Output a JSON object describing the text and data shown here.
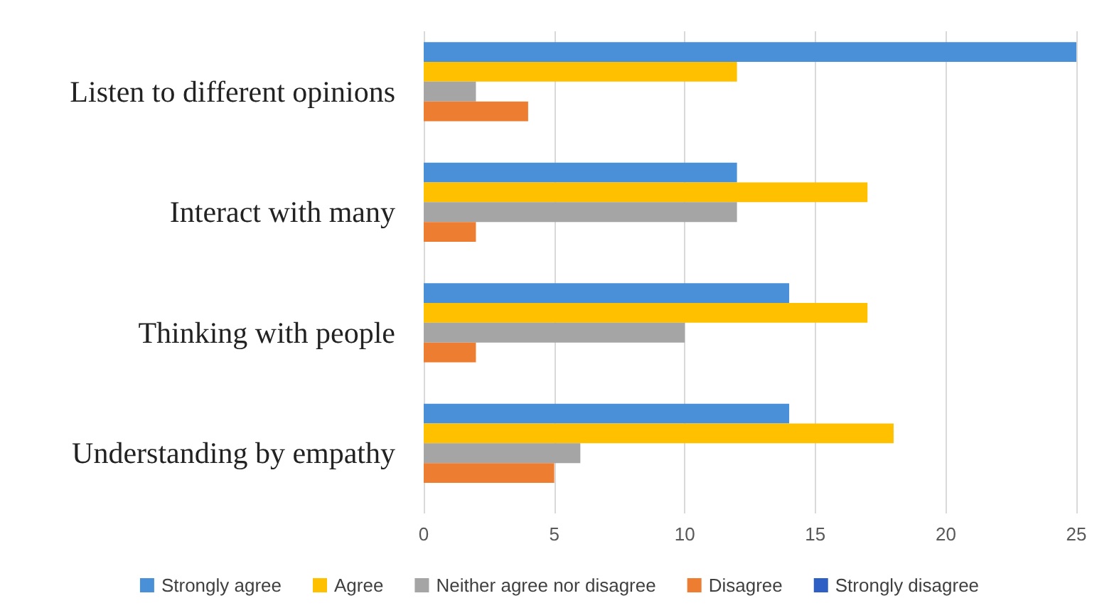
{
  "chart_data": {
    "type": "bar",
    "orientation": "horizontal",
    "categories": [
      "Listen to different opinions",
      "Interact with many",
      "Thinking with people",
      "Understanding by empathy"
    ],
    "series": [
      {
        "name": "Strongly agree",
        "color": "#4a90d9",
        "values": [
          25,
          12,
          14,
          14
        ]
      },
      {
        "name": "Agree",
        "color": "#ffc000",
        "values": [
          12,
          17,
          17,
          18
        ]
      },
      {
        "name": "Neither agree nor disagree",
        "color": "#a5a5a5",
        "values": [
          2,
          12,
          10,
          6
        ]
      },
      {
        "name": "Disagree",
        "color": "#ed7d31",
        "values": [
          4,
          2,
          2,
          5
        ]
      },
      {
        "name": "Strongly disagree",
        "color": "#2e5fc4",
        "values": [
          0,
          0,
          0,
          0
        ]
      }
    ],
    "xlim": [
      0,
      25
    ],
    "xticks": [
      0,
      5,
      10,
      15,
      20,
      25
    ],
    "grid": "x",
    "legend": "bottom"
  }
}
